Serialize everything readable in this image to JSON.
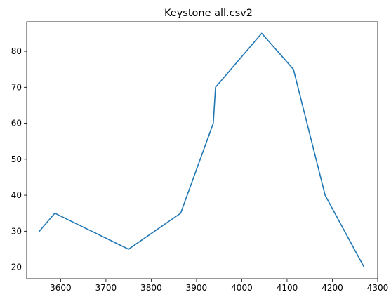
{
  "chart_data": {
    "type": "line",
    "title": "Keystone all.csv2",
    "xlabel": "",
    "ylabel": "",
    "xlim": [
      3525,
      4300
    ],
    "ylim": [
      16.8,
      88.2
    ],
    "xticks": [
      3600,
      3700,
      3800,
      3900,
      4000,
      4100,
      4200,
      4300
    ],
    "yticks": [
      20,
      30,
      40,
      50,
      60,
      70,
      80
    ],
    "grid": false,
    "line_color": "#1f77b4",
    "series": [
      {
        "x": [
          3553,
          3587,
          3750,
          3865,
          3937,
          3942,
          4044,
          4114,
          4184,
          4270
        ],
        "y": [
          30,
          35,
          25,
          35,
          60,
          70,
          85,
          75,
          40,
          20
        ]
      }
    ]
  }
}
